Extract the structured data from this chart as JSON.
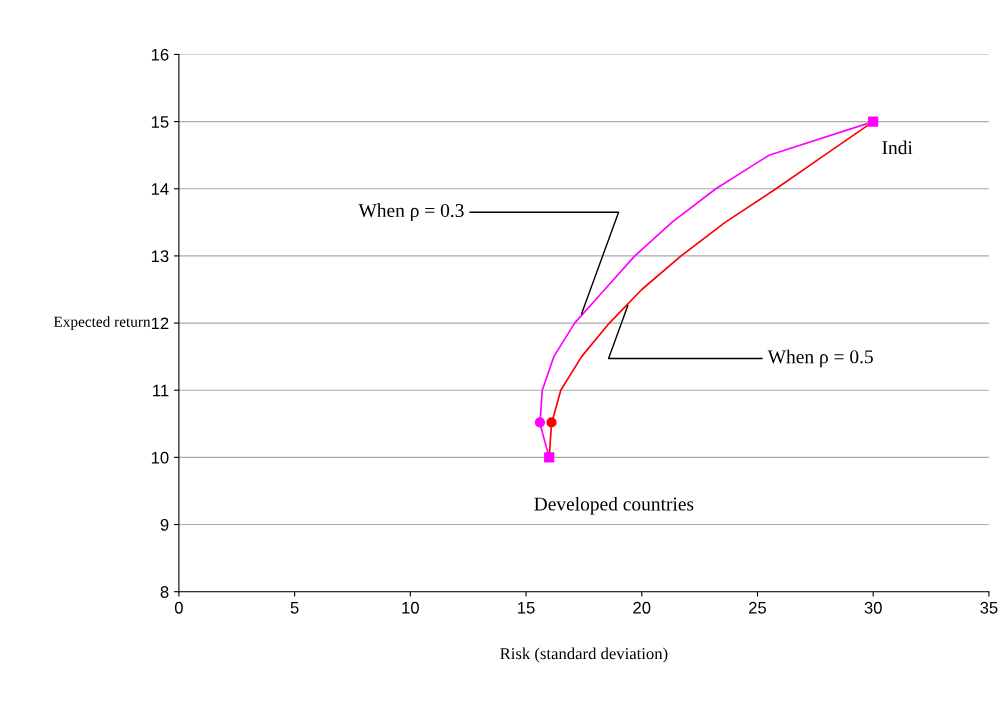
{
  "chart_data": {
    "type": "line",
    "xlabel": "Risk (standard deviation)",
    "ylabel": "Expected return",
    "xlim": [
      0,
      35
    ],
    "xticks": [
      0,
      5,
      10,
      15,
      20,
      25,
      30,
      35
    ],
    "ylim": [
      8,
      16
    ],
    "yticks": [
      8,
      9,
      10,
      11,
      12,
      13,
      14,
      15,
      16
    ],
    "grid": "y",
    "legend": false,
    "marker": "none",
    "line_style": "solid",
    "series": [
      {
        "color": "#ff00ff",
        "x": [
          16,
          15.6,
          15.7,
          16.2,
          17.1,
          18.4,
          19.7,
          21.3,
          23.2,
          25.5,
          30
        ],
        "values": [
          10,
          10.5,
          11,
          11.5,
          12,
          12.5,
          13,
          13.5,
          14,
          14.5,
          15
        ]
      },
      {
        "color": "#ff0000",
        "x": [
          16,
          16.1,
          16.5,
          17.4,
          18.6,
          20.0,
          21.7,
          23.6,
          25.8,
          27.9,
          30
        ],
        "values": [
          10,
          10.5,
          11,
          11.5,
          12,
          12.5,
          13,
          13.5,
          14,
          14.5,
          15
        ]
      },
      {
        "type": "scatter",
        "marker": "square",
        "color": "#ff00ff",
        "x": [
          16,
          30
        ],
        "values": [
          10,
          15
        ]
      },
      {
        "type": "scatter",
        "marker": "circle",
        "color": "#ff00ff",
        "x": [
          15.6
        ],
        "values": [
          10.52
        ]
      },
      {
        "type": "scatter",
        "marker": "circle",
        "color": "#ff0000",
        "x": [
          16.1
        ],
        "values": [
          10.52
        ]
      }
    ],
    "annotations": [
      {
        "text": "Indi",
        "x": 30,
        "y": 15
      },
      "Developed countries",
      {
        "text": "When ρ = 0.3",
        "x": 17.36,
        "y": 12.1
      },
      {
        "text": "When ρ = 0.5",
        "x": 19.44,
        "y": 12.3
      }
    ]
  }
}
